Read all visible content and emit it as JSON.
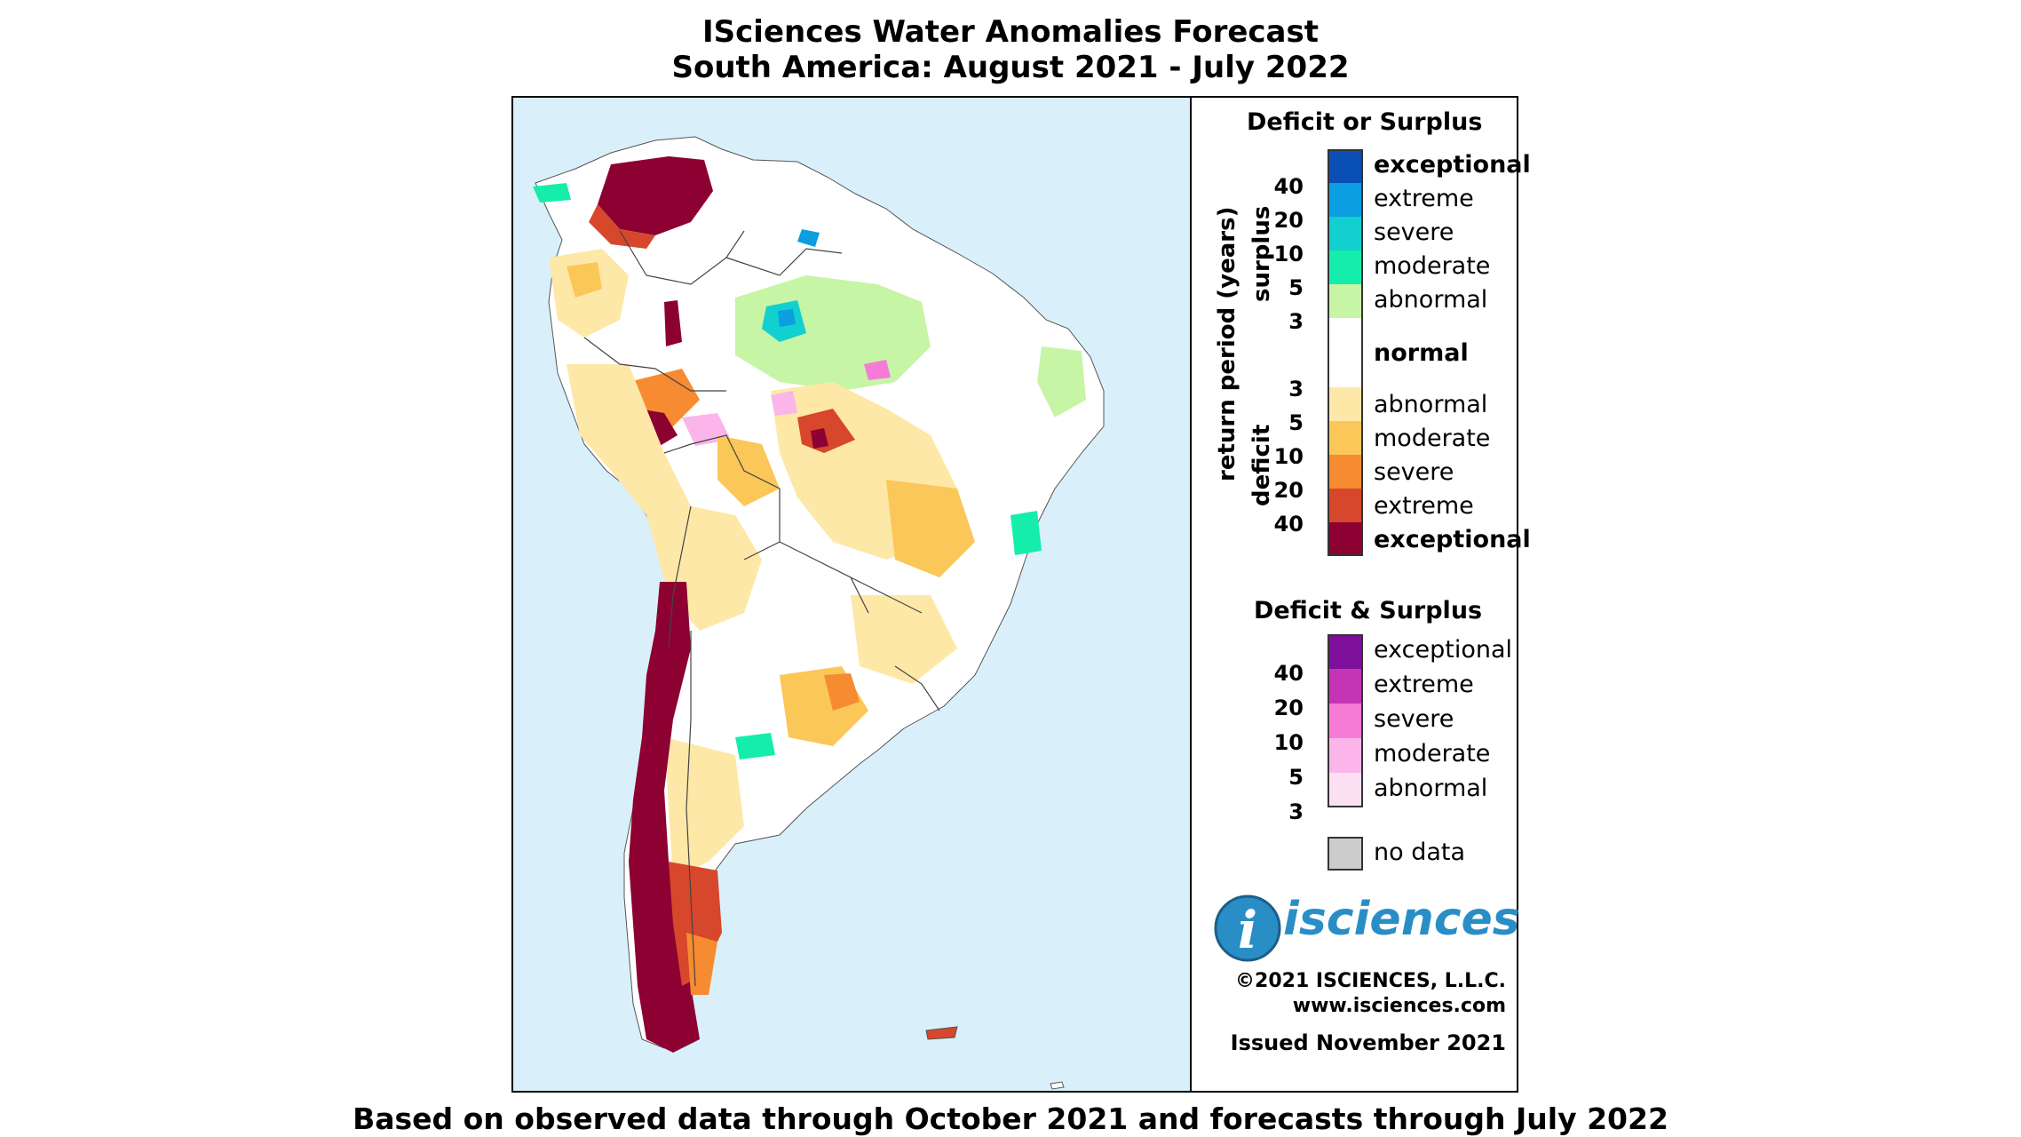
{
  "title_line1": "ISciences Water Anomalies Forecast",
  "title_line2": "South America: August 2021 - July 2022",
  "footer": "Based on observed data through October 2021 and forecasts through July 2022",
  "legend": {
    "heading1": "Deficit or Surplus",
    "axis_label": "return period (years)",
    "surplus_label": "surplus",
    "deficit_label": "deficit",
    "surplus_classes": [
      {
        "label": "exceptional",
        "color": "#0a4fb6",
        "bold": true
      },
      {
        "label": "extreme",
        "color": "#0b9ee0",
        "bold": false
      },
      {
        "label": "severe",
        "color": "#12cfd0",
        "bold": false
      },
      {
        "label": "moderate",
        "color": "#14eeaa",
        "bold": false
      },
      {
        "label": "abnormal",
        "color": "#c6f5a6",
        "bold": false
      }
    ],
    "surplus_ticks": [
      "40",
      "20",
      "10",
      "5",
      "3"
    ],
    "normal_label": "normal",
    "deficit_ticks": [
      "3",
      "5",
      "10",
      "20",
      "40"
    ],
    "deficit_classes": [
      {
        "label": "abnormal",
        "color": "#fde8a8",
        "bold": false
      },
      {
        "label": "moderate",
        "color": "#fbc758",
        "bold": false
      },
      {
        "label": "severe",
        "color": "#f68b31",
        "bold": false
      },
      {
        "label": "extreme",
        "color": "#d6472b",
        "bold": false
      },
      {
        "label": "exceptional",
        "color": "#8d0032",
        "bold": true
      }
    ],
    "heading2": "Deficit & Surplus",
    "both_ticks": [
      "40",
      "20",
      "10",
      "5",
      "3"
    ],
    "both_classes": [
      {
        "label": "exceptional",
        "color": "#7d0f9a"
      },
      {
        "label": "extreme",
        "color": "#c434b5"
      },
      {
        "label": "severe",
        "color": "#f77bd6"
      },
      {
        "label": "moderate",
        "color": "#fbb5ea"
      },
      {
        "label": "abnormal",
        "color": "#fce0f2"
      }
    ],
    "nodata_label": "no data",
    "nodata_color": "#cccccc"
  },
  "logo": "isciences",
  "copyright": "©2021 ISCIENCES, L.L.C.",
  "website": "www.isciences.com",
  "issued": "Issued November 2021"
}
